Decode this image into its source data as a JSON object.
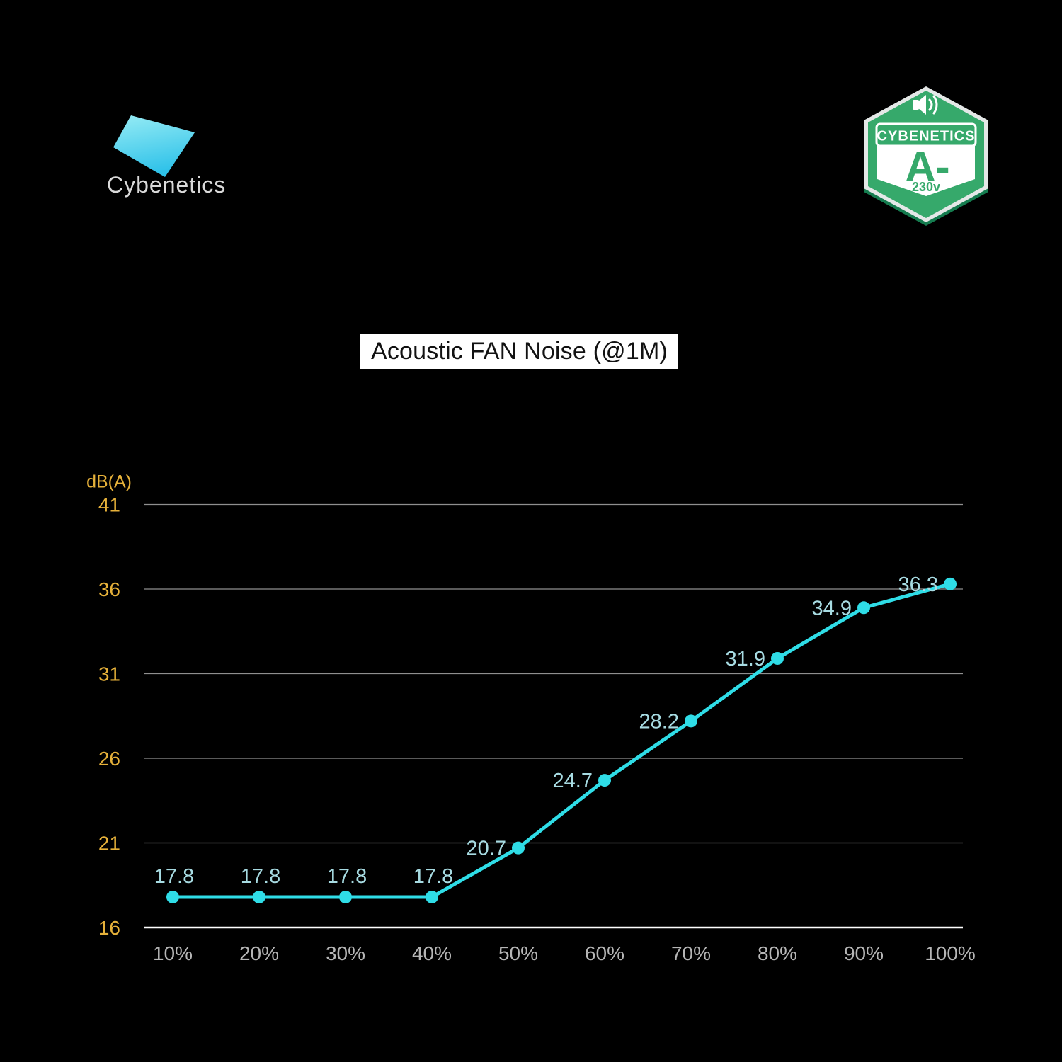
{
  "brand": {
    "logo_text": "Cybenetics",
    "gradient_top": "#97ecf5",
    "gradient_bottom": "#2fc2e9"
  },
  "badge": {
    "icon": "speaker-sound-waves-icon",
    "brand": "CYBENETICS",
    "rating": "A-",
    "voltage": "230v",
    "green": "#36a96b",
    "dark_green": "#157c4f",
    "silver": "#e4e8e7",
    "white": "#ffffff"
  },
  "chart_data": {
    "type": "line",
    "title": "Acoustic FAN Noise (@1M)",
    "ylabel": "dB(A)",
    "xlabel": "",
    "categories": [
      "10%",
      "20%",
      "30%",
      "40%",
      "50%",
      "60%",
      "70%",
      "80%",
      "90%",
      "100%"
    ],
    "values": [
      17.8,
      17.8,
      17.8,
      17.8,
      20.7,
      24.7,
      28.2,
      31.9,
      34.9,
      36.3
    ],
    "y_ticks": [
      16,
      21,
      26,
      31,
      36,
      41
    ],
    "ylim": [
      16,
      41
    ],
    "grid": true,
    "legend": false,
    "colors": {
      "line": "#2fdde7",
      "point_label": "#a7dbe2",
      "y_tick": "#e6b13a",
      "x_tick": "#b5b5b5",
      "grid": "#8f8f8f",
      "axis": "#ffffff"
    }
  }
}
